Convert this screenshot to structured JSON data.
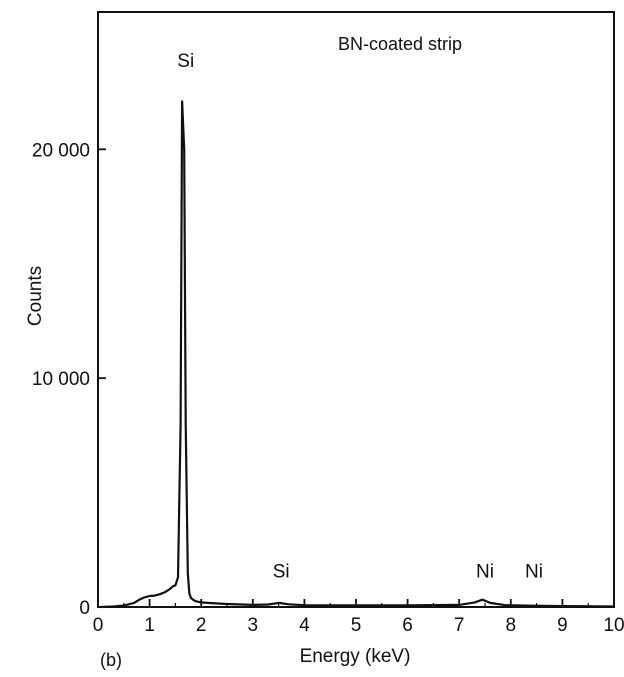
{
  "chart_data": {
    "type": "line",
    "title": "BN-coated strip",
    "panel_label": "(b)",
    "xlabel": "Energy (keV)",
    "ylabel": "Counts",
    "xlim": [
      0,
      10
    ],
    "ylim": [
      0,
      26000
    ],
    "xticks": [
      0,
      1,
      2,
      3,
      4,
      5,
      6,
      7,
      8,
      9,
      10
    ],
    "xtick_labels": [
      "0",
      "1",
      "2",
      "3",
      "4",
      "5",
      "6",
      "7",
      "8",
      "9",
      "10"
    ],
    "yticks": [
      0,
      10000,
      20000
    ],
    "ytick_labels": [
      "0",
      "10 000",
      "20 000"
    ],
    "grid": false,
    "series": [
      {
        "x": [
          0.05,
          0.3,
          0.5,
          0.7,
          0.8,
          0.9,
          1.0,
          1.1,
          1.2,
          1.3,
          1.35,
          1.4,
          1.45,
          1.5,
          1.55,
          1.6,
          1.63,
          1.67,
          1.7,
          1.74,
          1.77,
          1.8,
          1.85,
          1.9,
          2.0,
          2.2,
          2.5,
          3.0,
          3.3,
          3.5,
          3.7,
          4.0,
          5.0,
          6.0,
          7.0,
          7.3,
          7.45,
          7.6,
          7.9,
          8.3,
          9.0,
          10.0
        ],
        "y": [
          0,
          20,
          60,
          180,
          320,
          420,
          480,
          500,
          560,
          650,
          720,
          800,
          900,
          950,
          1300,
          8000,
          22100,
          20000,
          8000,
          1500,
          600,
          400,
          300,
          250,
          200,
          170,
          130,
          90,
          110,
          180,
          120,
          80,
          70,
          70,
          90,
          200,
          320,
          180,
          80,
          60,
          40,
          20
        ]
      }
    ],
    "annotations": [
      {
        "text": "Si",
        "x": 1.7,
        "y": 23600
      },
      {
        "text": "Si",
        "x": 3.55,
        "y": 1300
      },
      {
        "text": "Ni",
        "x": 7.5,
        "y": 1300
      },
      {
        "text": "Ni",
        "x": 8.45,
        "y": 1300
      }
    ]
  }
}
